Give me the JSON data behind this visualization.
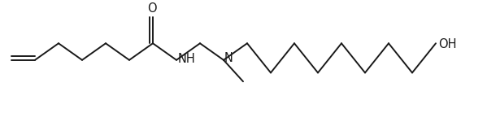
{
  "bg_color": "#ffffff",
  "line_color": "#1a1a1a",
  "text_color": "#1a1a1a",
  "lw": 1.4,
  "figsize": [
    5.99,
    1.5
  ],
  "dpi": 100,
  "xlim": [
    0,
    599
  ],
  "ylim": [
    0,
    150
  ],
  "bond_len_x": 38,
  "bond_len_y": 22,
  "label_fontsize": 10.5
}
